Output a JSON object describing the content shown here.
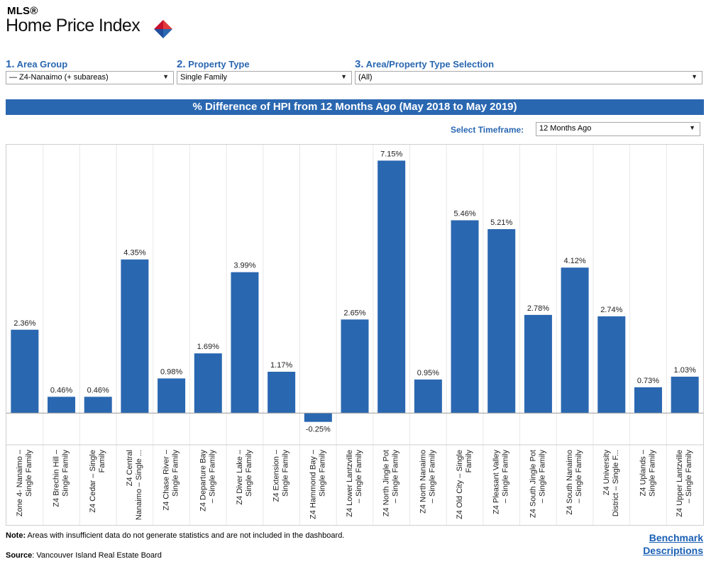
{
  "logo": {
    "mls": "MLS®",
    "title": "Home Price Index"
  },
  "filters": [
    {
      "num": "1.",
      "label": "Area Group",
      "value": "— Z4-Nanaimo (+ subareas)"
    },
    {
      "num": "2.",
      "label": "Property Type",
      "value": "Single Family"
    },
    {
      "num": "3.",
      "label": "Area/Property Type Selection",
      "value": "(All)"
    }
  ],
  "banner": "% Difference of HPI from 12 Months Ago (May 2018 to May 2019)",
  "timeframe": {
    "label": "Select Timeframe:",
    "value": "12 Months Ago"
  },
  "colors": {
    "bar": "#2a67b1",
    "accent": "#2a67b1"
  },
  "chart_data": {
    "type": "bar",
    "title": "% Difference of HPI from 12 Months Ago (May 2018 to May 2019)",
    "categories": [
      [
        "Zone 4- Nanaimo –",
        "Single Family"
      ],
      [
        "Z4 Brechin Hill –",
        "Single Family"
      ],
      [
        "Z4 Cedar – Single",
        "Family"
      ],
      [
        "Z4 Central",
        "Nanaimo – Single ..."
      ],
      [
        "Z4 Chase River –",
        "Single Family"
      ],
      [
        "Z4 Departure Bay",
        "– Single Family"
      ],
      [
        "Z4 Diver Lake –",
        "Single Family"
      ],
      [
        "Z4 Extension –",
        "Single Family"
      ],
      [
        "Z4 Hammond Bay –",
        "Single Family"
      ],
      [
        "Z4 Lower Lantzville",
        "– Single Family"
      ],
      [
        "Z4 North Jingle Pot",
        "– Single Family"
      ],
      [
        "Z4 North Nanaimo",
        "– Single Family"
      ],
      [
        "Z4 Old City – Single",
        "Family"
      ],
      [
        "Z4 Pleasant Valley",
        "– Single Family"
      ],
      [
        "Z4 South Jingle Pot",
        "– Single Family"
      ],
      [
        "Z4 South Nanaimo",
        "– Single Family"
      ],
      [
        "Z4 University",
        "District – Single F..."
      ],
      [
        "Z4 Uplands –",
        "Single Family"
      ],
      [
        "Z4 Upper Lantzville",
        "– Single Family"
      ]
    ],
    "values": [
      2.36,
      0.46,
      0.46,
      4.35,
      0.98,
      1.69,
      3.99,
      1.17,
      -0.25,
      2.65,
      7.15,
      0.95,
      5.46,
      5.21,
      2.78,
      4.12,
      2.74,
      0.73,
      1.03
    ],
    "data_labels": [
      "2.36%",
      "0.46%",
      "0.46%",
      "4.35%",
      "0.98%",
      "1.69%",
      "3.99%",
      "1.17%",
      "-0.25%",
      "2.65%",
      "7.15%",
      "0.95%",
      "5.46%",
      "5.21%",
      "2.78%",
      "4.12%",
      "2.74%",
      "0.73%",
      "1.03%"
    ],
    "ylim": [
      -0.9,
      7.6
    ],
    "grid": false
  },
  "footer": {
    "note_label": "Note:",
    "note_text": " Areas with insufficient data do not generate statistics and are not included in the dashboard.",
    "source_label": "Source",
    "source_text": ": Vancouver Island Real Estate Board",
    "link_line1": "Benchmark",
    "link_line2": "Descriptions"
  }
}
